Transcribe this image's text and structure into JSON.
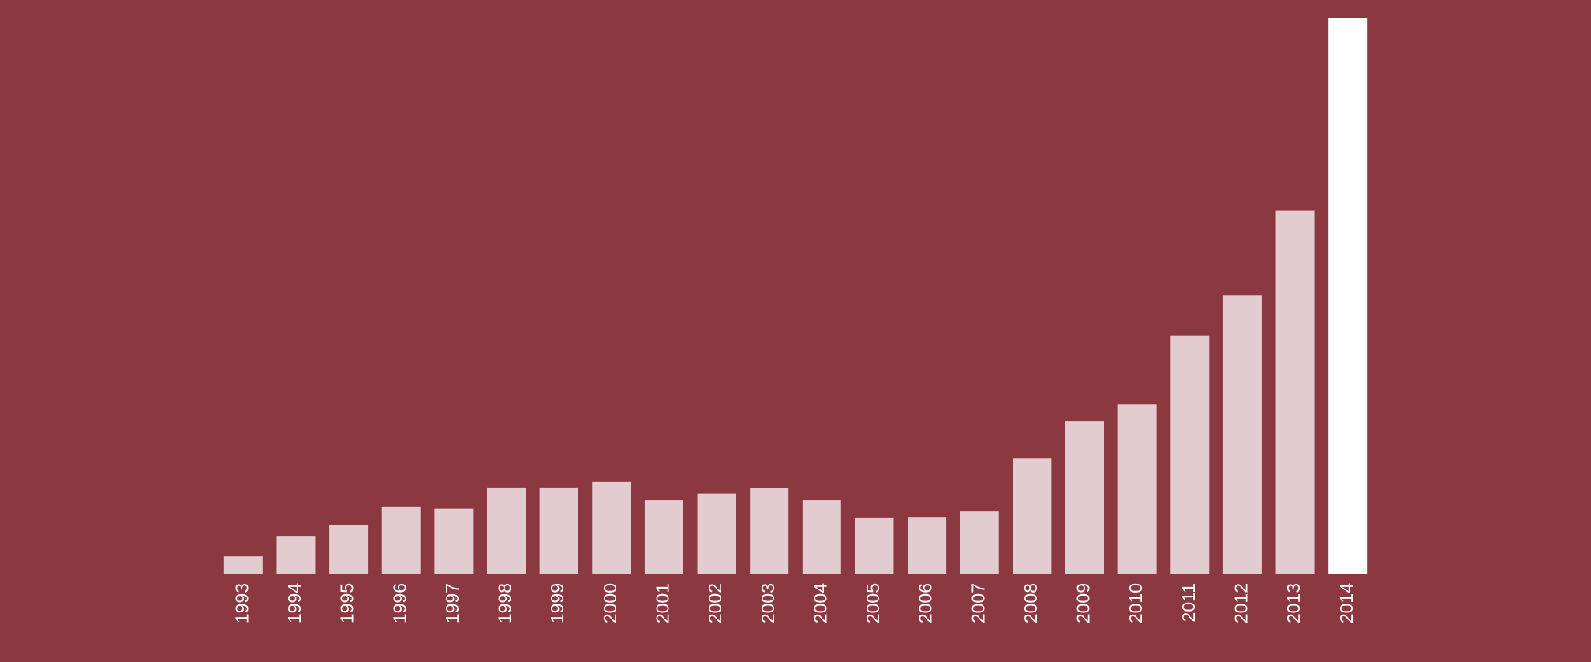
{
  "chart_data": {
    "type": "bar",
    "categories": [
      "1993",
      "1994",
      "1995",
      "1996",
      "1997",
      "1998",
      "1999",
      "2000",
      "2001",
      "2002",
      "2003",
      "2004",
      "2005",
      "2006",
      "2007",
      "2008",
      "2009",
      "2010",
      "2011",
      "2012",
      "2013",
      "2014"
    ],
    "values": [
      3.1,
      6.8,
      8.8,
      12.1,
      11.7,
      15.5,
      15.5,
      16.5,
      13.2,
      14.4,
      15.4,
      13.2,
      10.1,
      10.2,
      11.2,
      20.7,
      27.4,
      30.5,
      42.8,
      50.1,
      65.4,
      100
    ],
    "colors": [
      "#e2ccd0",
      "#e2ccd0",
      "#e2ccd0",
      "#e2ccd0",
      "#e2ccd0",
      "#e2ccd0",
      "#e2ccd0",
      "#e2ccd0",
      "#e2ccd0",
      "#e2ccd0",
      "#e2ccd0",
      "#e2ccd0",
      "#e2ccd0",
      "#e2ccd0",
      "#e2ccd0",
      "#e2ccd0",
      "#e2ccd0",
      "#e2ccd0",
      "#e2ccd0",
      "#e2ccd0",
      "#e2ccd0",
      "#ffffff"
    ],
    "ylim": [
      0,
      100
    ]
  }
}
